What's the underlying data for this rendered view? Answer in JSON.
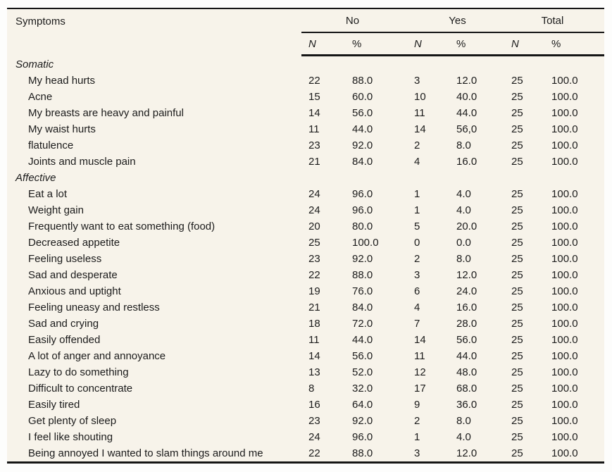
{
  "colors": {
    "page_background": "#fdfdfc",
    "table_background": "#f7f3ea",
    "text": "#1b1b1b",
    "rule": "#151515"
  },
  "table": {
    "symptoms_header": "Symptoms",
    "groups": [
      "No",
      "Yes",
      "Total"
    ],
    "subheaders": [
      "N",
      "%",
      "N",
      "%",
      "N",
      "%"
    ],
    "sections": [
      {
        "label": "Somatic",
        "rows": [
          {
            "symptom": "My head hurts",
            "no_n": "22",
            "no_pct": "88.0",
            "yes_n": "3",
            "yes_pct": "12.0",
            "total_n": "25",
            "total_pct": "100.0"
          },
          {
            "symptom": "Acne",
            "no_n": "15",
            "no_pct": "60.0",
            "yes_n": "10",
            "yes_pct": "40.0",
            "total_n": "25",
            "total_pct": "100.0"
          },
          {
            "symptom": "My breasts are heavy and painful",
            "no_n": "14",
            "no_pct": "56.0",
            "yes_n": "11",
            "yes_pct": "44.0",
            "total_n": "25",
            "total_pct": "100.0"
          },
          {
            "symptom": "My waist hurts",
            "no_n": "11",
            "no_pct": "44.0",
            "yes_n": "14",
            "yes_pct": "56,0",
            "total_n": "25",
            "total_pct": "100.0"
          },
          {
            "symptom": "flatulence",
            "no_n": "23",
            "no_pct": "92.0",
            "yes_n": "2",
            "yes_pct": "8.0",
            "total_n": "25",
            "total_pct": "100.0"
          },
          {
            "symptom": "Joints and muscle pain",
            "no_n": "21",
            "no_pct": "84.0",
            "yes_n": "4",
            "yes_pct": "16.0",
            "total_n": "25",
            "total_pct": "100.0"
          }
        ]
      },
      {
        "label": "Affective",
        "rows": [
          {
            "symptom": "Eat a lot",
            "no_n": "24",
            "no_pct": "96.0",
            "yes_n": "1",
            "yes_pct": "4.0",
            "total_n": "25",
            "total_pct": "100.0"
          },
          {
            "symptom": "Weight gain",
            "no_n": "24",
            "no_pct": "96.0",
            "yes_n": "1",
            "yes_pct": "4.0",
            "total_n": "25",
            "total_pct": "100.0"
          },
          {
            "symptom": "Frequently want to eat something (food)",
            "no_n": "20",
            "no_pct": "80.0",
            "yes_n": "5",
            "yes_pct": "20.0",
            "total_n": "25",
            "total_pct": "100.0"
          },
          {
            "symptom": "Decreased appetite",
            "no_n": "25",
            "no_pct": "100.0",
            "yes_n": "0",
            "yes_pct": "0.0",
            "total_n": "25",
            "total_pct": "100.0"
          },
          {
            "symptom": "Feeling useless",
            "no_n": "23",
            "no_pct": "92.0",
            "yes_n": "2",
            "yes_pct": "8.0",
            "total_n": "25",
            "total_pct": "100.0"
          },
          {
            "symptom": "Sad and desperate",
            "no_n": "22",
            "no_pct": "88.0",
            "yes_n": "3",
            "yes_pct": "12.0",
            "total_n": "25",
            "total_pct": "100.0"
          },
          {
            "symptom": "Anxious and uptight",
            "no_n": "19",
            "no_pct": "76.0",
            "yes_n": "6",
            "yes_pct": "24.0",
            "total_n": "25",
            "total_pct": "100.0"
          },
          {
            "symptom": "Feeling uneasy and restless",
            "no_n": "21",
            "no_pct": "84.0",
            "yes_n": "4",
            "yes_pct": "16.0",
            "total_n": "25",
            "total_pct": "100.0"
          },
          {
            "symptom": "Sad and crying",
            "no_n": "18",
            "no_pct": "72.0",
            "yes_n": "7",
            "yes_pct": "28.0",
            "total_n": "25",
            "total_pct": "100.0"
          },
          {
            "symptom": "Easily offended",
            "no_n": "11",
            "no_pct": "44.0",
            "yes_n": "14",
            "yes_pct": "56.0",
            "total_n": "25",
            "total_pct": "100.0"
          },
          {
            "symptom": "A lot of anger and annoyance",
            "no_n": "14",
            "no_pct": "56.0",
            "yes_n": "11",
            "yes_pct": "44.0",
            "total_n": "25",
            "total_pct": "100.0"
          },
          {
            "symptom": "Lazy to do something",
            "no_n": "13",
            "no_pct": "52.0",
            "yes_n": "12",
            "yes_pct": "48.0",
            "total_n": "25",
            "total_pct": "100.0"
          },
          {
            "symptom": "Difficult to concentrate",
            "no_n": "8",
            "no_pct": "32.0",
            "yes_n": "17",
            "yes_pct": "68.0",
            "total_n": "25",
            "total_pct": "100.0"
          },
          {
            "symptom": "Easily tired",
            "no_n": "16",
            "no_pct": "64.0",
            "yes_n": "9",
            "yes_pct": "36.0",
            "total_n": "25",
            "total_pct": "100.0"
          },
          {
            "symptom": "Get plenty of sleep",
            "no_n": "23",
            "no_pct": "92.0",
            "yes_n": "2",
            "yes_pct": "8.0",
            "total_n": "25",
            "total_pct": "100.0"
          },
          {
            "symptom": "I feel like shouting",
            "no_n": "24",
            "no_pct": "96.0",
            "yes_n": "1",
            "yes_pct": "4.0",
            "total_n": "25",
            "total_pct": "100.0"
          },
          {
            "symptom": "Being annoyed I wanted to slam things around me",
            "no_n": "22",
            "no_pct": "88.0",
            "yes_n": "3",
            "yes_pct": "12.0",
            "total_n": "25",
            "total_pct": "100.0"
          }
        ]
      }
    ]
  }
}
